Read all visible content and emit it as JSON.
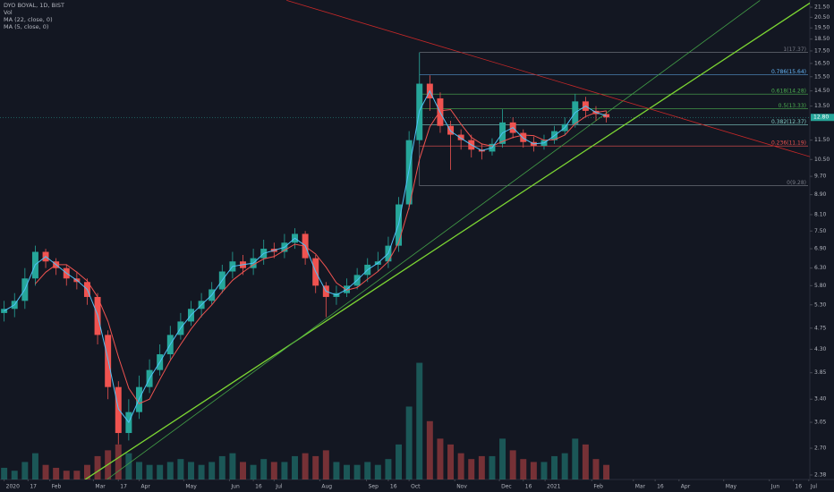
{
  "chart_data": {
    "type": "candlestick",
    "title": "DYO BOYAL, 1D, BIST",
    "indicators": [
      "Vol",
      "MA (22, close, 0)",
      "MA (5, close, 0)"
    ],
    "log_scale": true,
    "up_color": "#26a69a",
    "down_color": "#ef5350",
    "ma_fast_color": "#4fc3f7",
    "ma_slow_color": "#ef5350",
    "xlim": [
      -0.4,
      77.6
    ],
    "xticks": [
      {
        "value": 0,
        "label": "2020"
      },
      {
        "value": 2.3,
        "label": "17"
      },
      {
        "value": 4.4,
        "label": "Feb"
      },
      {
        "value": 8.6,
        "label": "Mar"
      },
      {
        "value": 11,
        "label": "17"
      },
      {
        "value": 13,
        "label": "Apr"
      },
      {
        "value": 17.3,
        "label": "May"
      },
      {
        "value": 21.7,
        "label": "Jun"
      },
      {
        "value": 24,
        "label": "16"
      },
      {
        "value": 26,
        "label": "Jul"
      },
      {
        "value": 30.4,
        "label": "Aug"
      },
      {
        "value": 34.9,
        "label": "Sep"
      },
      {
        "value": 37,
        "label": "16"
      },
      {
        "value": 39,
        "label": "Oct"
      },
      {
        "value": 43.4,
        "label": "Nov"
      },
      {
        "value": 47.7,
        "label": "Dec"
      },
      {
        "value": 50,
        "label": "16"
      },
      {
        "value": 52.1,
        "label": "2021"
      },
      {
        "value": 56.6,
        "label": "Feb"
      },
      {
        "value": 60.6,
        "label": "Mar"
      },
      {
        "value": 62.7,
        "label": "16"
      },
      {
        "value": 65,
        "label": "Apr"
      },
      {
        "value": 69.3,
        "label": "May"
      },
      {
        "value": 73.7,
        "label": "Jun"
      },
      {
        "value": 76,
        "label": "16"
      },
      {
        "value": 77.5,
        "label": "Jul"
      }
    ],
    "ylim": [
      2.38,
      21.5
    ],
    "yticks": [
      {
        "value": 21.5,
        "label": "21.50"
      },
      {
        "value": 20.5,
        "label": "20.50"
      },
      {
        "value": 19.5,
        "label": "19.50"
      },
      {
        "value": 18.5,
        "label": "18.50"
      },
      {
        "value": 17.5,
        "label": "17.50"
      },
      {
        "value": 16.5,
        "label": "16.50"
      },
      {
        "value": 15.5,
        "label": "15.50"
      },
      {
        "value": 14.5,
        "label": "14.50"
      },
      {
        "value": 13.5,
        "label": "13.50"
      },
      {
        "value": 11.5,
        "label": "11.50"
      },
      {
        "value": 10.5,
        "label": "10.50"
      },
      {
        "value": 9.7,
        "label": "9.70"
      },
      {
        "value": 8.9,
        "label": "8.90"
      },
      {
        "value": 8.1,
        "label": "8.10"
      },
      {
        "value": 7.5,
        "label": "7.50"
      },
      {
        "value": 6.9,
        "label": "6.90"
      },
      {
        "value": 6.3,
        "label": "6.30"
      },
      {
        "value": 5.8,
        "label": "5.80"
      },
      {
        "value": 5.3,
        "label": "5.30"
      },
      4.75,
      {
        "value": 4.3,
        "label": "4.30"
      },
      3.85,
      {
        "value": 3.4,
        "label": "3.40"
      },
      3.05,
      {
        "value": 2.7,
        "label": "2.70"
      },
      2.38
    ],
    "last_price": {
      "value": 12.8,
      "label": "12.80"
    },
    "open": [
      5.1,
      5.2,
      5.4,
      6.0,
      6.8,
      6.5,
      6.3,
      6.0,
      5.9,
      5.5,
      4.6,
      3.6,
      2.9,
      3.2,
      3.6,
      3.9,
      4.2,
      4.6,
      4.9,
      5.2,
      5.4,
      5.7,
      6.2,
      6.5,
      6.3,
      6.6,
      6.9,
      6.8,
      7.1,
      7.4,
      6.6,
      5.8,
      5.5,
      5.6,
      5.8,
      6.1,
      6.4,
      6.5,
      7.0,
      8.5,
      11.5,
      15.0,
      14.0,
      12.3,
      11.8,
      11.5,
      11.0,
      10.9,
      11.3,
      12.5,
      11.9,
      11.4,
      11.2,
      11.5,
      12.0,
      12.4,
      13.8,
      13.2,
      13.0
    ],
    "high": [
      5.4,
      5.6,
      6.3,
      7.0,
      6.9,
      6.6,
      6.4,
      6.2,
      6.0,
      5.6,
      4.7,
      3.7,
      3.4,
      3.8,
      4.1,
      4.4,
      4.8,
      5.1,
      5.4,
      5.6,
      5.9,
      6.4,
      6.8,
      6.7,
      6.9,
      7.2,
      7.1,
      7.4,
      7.6,
      7.5,
      6.7,
      5.9,
      5.8,
      6.0,
      6.3,
      6.6,
      6.8,
      7.3,
      8.8,
      12.0,
      17.37,
      15.6,
      14.4,
      12.6,
      12.1,
      11.8,
      11.3,
      11.6,
      13.3,
      12.8,
      12.1,
      11.7,
      11.8,
      12.3,
      12.8,
      14.3,
      14.1,
      13.5,
      13.2
    ],
    "low": [
      4.9,
      5.0,
      5.2,
      5.8,
      6.3,
      6.1,
      5.8,
      5.7,
      5.3,
      4.4,
      3.4,
      2.75,
      2.8,
      3.1,
      3.5,
      3.8,
      4.1,
      4.5,
      4.8,
      5.0,
      5.3,
      5.6,
      6.0,
      6.1,
      6.1,
      6.4,
      6.6,
      6.6,
      6.9,
      6.4,
      5.6,
      5.0,
      5.3,
      5.5,
      5.7,
      5.9,
      6.2,
      6.3,
      6.8,
      8.3,
      11.3,
      13.2,
      11.9,
      10.0,
      11.0,
      10.6,
      10.5,
      10.7,
      11.1,
      11.6,
      11.1,
      10.9,
      11.0,
      11.3,
      11.8,
      12.2,
      12.8,
      12.6,
      12.5
    ],
    "close": [
      5.2,
      5.4,
      6.0,
      6.8,
      6.5,
      6.3,
      6.0,
      5.9,
      5.5,
      4.6,
      3.6,
      2.9,
      3.2,
      3.6,
      3.9,
      4.2,
      4.6,
      4.9,
      5.2,
      5.4,
      5.7,
      6.2,
      6.5,
      6.3,
      6.6,
      6.9,
      6.8,
      7.1,
      7.4,
      6.6,
      5.8,
      5.5,
      5.6,
      5.8,
      6.1,
      6.4,
      6.5,
      7.0,
      8.5,
      11.5,
      15.0,
      14.0,
      12.3,
      11.8,
      11.5,
      11.0,
      10.9,
      11.3,
      12.5,
      11.9,
      11.4,
      11.2,
      11.5,
      12.0,
      12.4,
      13.8,
      13.2,
      13.0,
      12.8
    ],
    "volume": [
      4,
      3,
      6,
      9,
      5,
      4,
      3,
      3,
      5,
      8,
      10,
      12,
      9,
      6,
      5,
      5,
      6,
      7,
      6,
      5,
      6,
      8,
      9,
      6,
      5,
      7,
      6,
      6,
      8,
      9,
      8,
      10,
      6,
      5,
      5,
      6,
      5,
      7,
      12,
      25,
      40,
      20,
      14,
      12,
      9,
      7,
      8,
      8,
      14,
      10,
      7,
      6,
      6,
      8,
      9,
      14,
      12,
      7,
      5
    ],
    "vlim": [
      0,
      46
    ],
    "ma_fast": [
      5.15,
      5.3,
      5.7,
      6.4,
      6.65,
      6.4,
      6.15,
      5.95,
      5.7,
      5.05,
      4.1,
      3.25,
      3.05,
      3.4,
      3.75,
      4.05,
      4.4,
      4.75,
      5.05,
      5.3,
      5.55,
      5.95,
      6.35,
      6.4,
      6.45,
      6.75,
      6.85,
      6.95,
      7.25,
      7.0,
      6.2,
      5.65,
      5.55,
      5.7,
      5.95,
      6.25,
      6.45,
      6.75,
      7.75,
      10.0,
      13.2,
      14.5,
      13.1,
      12.0,
      11.6,
      11.25,
      10.95,
      11.1,
      11.9,
      12.2,
      11.6,
      11.3,
      11.35,
      11.75,
      12.2,
      13.1,
      13.5,
      13.1,
      12.9
    ],
    "ma_slow": [
      null,
      null,
      null,
      5.85,
      6.18,
      6.4,
      6.4,
      6.18,
      5.93,
      5.5,
      4.9,
      4.15,
      3.58,
      3.33,
      3.4,
      3.73,
      4.08,
      4.4,
      4.73,
      5.03,
      5.3,
      5.63,
      5.95,
      6.18,
      6.4,
      6.58,
      6.65,
      6.85,
      7.05,
      6.98,
      6.73,
      6.33,
      5.88,
      5.68,
      5.75,
      5.98,
      6.2,
      6.5,
      7.1,
      8.38,
      10.5,
      12.25,
      13.2,
      13.28,
      12.4,
      11.65,
      11.3,
      11.18,
      11.43,
      11.65,
      11.78,
      11.75,
      11.5,
      11.53,
      11.78,
      12.43,
      12.85,
      13.1,
      13.2
    ],
    "fib_start": 40,
    "fib_levels": [
      {
        "value": 17.37,
        "label": "1(17.37)",
        "color": "#787b86"
      },
      {
        "value": 15.64,
        "label": "0.786(15.64)",
        "color": "#64b5f6"
      },
      {
        "value": 14.28,
        "label": "0.618(14.28)",
        "color": "#4caf50"
      },
      {
        "value": 13.33,
        "label": "0.5(13.33)",
        "color": "#4caf50"
      },
      {
        "value": 12.37,
        "label": "0.382(12.37)",
        "color": "#80cbc4"
      },
      {
        "value": 11.19,
        "label": "0.236(11.19)",
        "color": "#ef5350"
      },
      {
        "value": 9.28,
        "label": "0(9.28)",
        "color": "#787b86"
      }
    ],
    "trendlines": [
      {
        "color": "#7cd633",
        "x": [
          7.8,
          78
        ],
        "y": [
          2.33,
          22.2
        ]
      },
      {
        "color": "#43a047",
        "x": [
          9.9,
          72.8
        ],
        "y": [
          2.33,
          22.2
        ]
      },
      {
        "color": "#c62828",
        "x": [
          27.2,
          77.6
        ],
        "y": [
          22.2,
          10.64
        ]
      }
    ]
  }
}
